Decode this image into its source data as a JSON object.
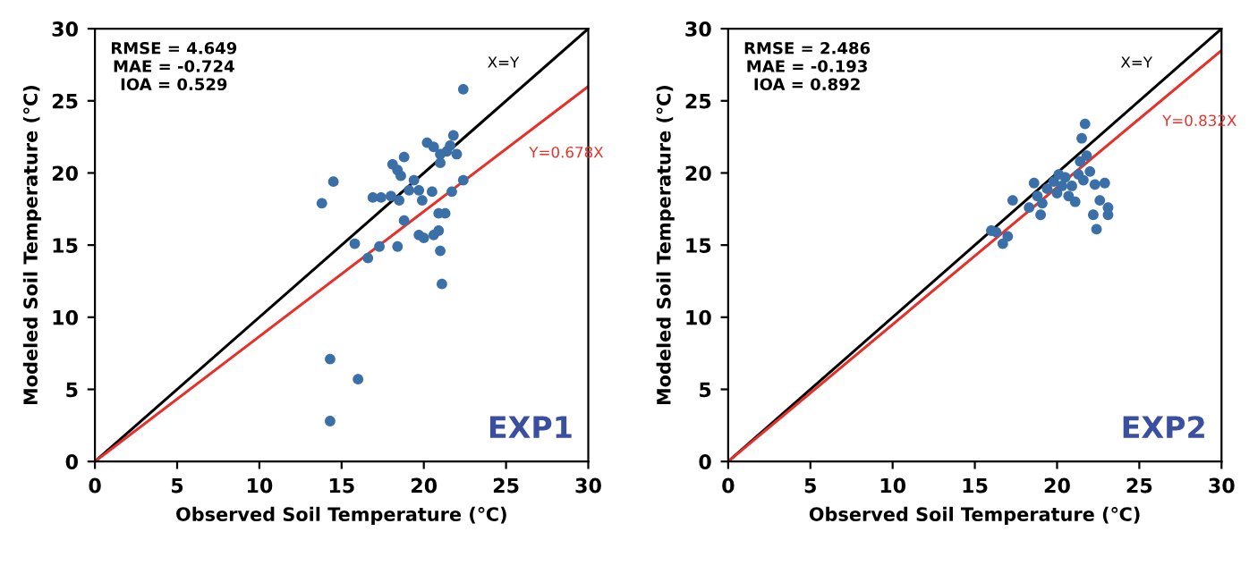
{
  "chart_data": [
    {
      "type": "scatter",
      "xlabel": "Observed Soil Temperature (℃)",
      "ylabel": "Modeled Soil Temperature (℃)",
      "xlim": [
        0,
        30
      ],
      "ylim": [
        0,
        30
      ],
      "xticks": [
        0,
        5,
        10,
        15,
        20,
        25,
        30
      ],
      "yticks": [
        0,
        5,
        10,
        15,
        20,
        25,
        30
      ],
      "grid": false,
      "legend": false,
      "annotations": [
        "RMSE = 4.649\nMAE = -0.724\nIOA = 0.529",
        "EXP1"
      ],
      "series": [
        {
          "type": "scatter",
          "marker": "circle",
          "color": "#3a6fa8",
          "x": [
            22.4,
            14.5,
            13.8,
            15.8,
            16.6,
            17.3,
            18.4,
            16.9,
            17.4,
            18.0,
            18.5,
            18.8,
            18.1,
            18.4,
            18.8,
            18.6,
            19.4,
            19.1,
            19.7,
            19.9,
            19.7,
            20.0,
            20.5,
            20.9,
            21.3,
            20.6,
            20.9,
            21.0,
            21.1,
            20.2,
            20.6,
            21.0,
            21.4,
            21.8,
            21.6,
            22.0,
            21.0,
            22.4,
            21.7,
            14.3,
            16.0,
            14.3
          ],
          "values": [
            25.8,
            19.4,
            17.9,
            15.1,
            14.1,
            14.9,
            14.9,
            18.3,
            18.3,
            18.4,
            18.1,
            16.7,
            20.6,
            20.2,
            21.1,
            19.8,
            19.5,
            18.8,
            18.8,
            18.1,
            15.7,
            15.5,
            18.7,
            17.2,
            17.2,
            15.7,
            16.0,
            14.6,
            12.3,
            22.1,
            21.8,
            21.3,
            21.5,
            22.6,
            21.9,
            21.3,
            20.7,
            19.5,
            18.7,
            7.1,
            5.7,
            2.8
          ]
        },
        {
          "type": "line",
          "name": "X=Y",
          "color": "#000000",
          "x": [
            0,
            30
          ],
          "values": [
            0,
            30
          ]
        },
        {
          "type": "line",
          "name": "Y=0.678X",
          "color": "#e8302a",
          "x": [
            0,
            30
          ],
          "values": [
            0,
            26.0
          ]
        }
      ]
    },
    {
      "type": "scatter",
      "xlabel": "Observed Soil Temperature (℃)",
      "ylabel": "Modeled Soil Temperature (℃)",
      "xlim": [
        0,
        30
      ],
      "ylim": [
        0,
        30
      ],
      "xticks": [
        0,
        5,
        10,
        15,
        20,
        25,
        30
      ],
      "yticks": [
        0,
        5,
        10,
        15,
        20,
        25,
        30
      ],
      "grid": false,
      "legend": false,
      "annotations": [
        "RMSE = 2.486\nMAE = -0.193\nIOA = 0.892",
        "EXP2"
      ],
      "series": [
        {
          "type": "scatter",
          "marker": "circle",
          "color": "#3a6fa8",
          "x": [
            16.0,
            16.3,
            16.7,
            17.0,
            17.3,
            18.3,
            18.6,
            18.8,
            19.0,
            19.1,
            19.4,
            19.8,
            20.1,
            20.5,
            20.7,
            21.1,
            20.9,
            21.3,
            21.4,
            21.5,
            21.7,
            21.8,
            21.6,
            22.0,
            22.2,
            22.4,
            22.6,
            22.9,
            23.1,
            23.1,
            22.3,
            20.3,
            20.0
          ],
          "values": [
            16.0,
            15.9,
            15.1,
            15.6,
            18.1,
            17.6,
            19.3,
            18.4,
            17.1,
            17.9,
            18.9,
            19.4,
            19.9,
            19.7,
            18.4,
            18.0,
            19.1,
            19.9,
            20.8,
            22.4,
            23.4,
            21.2,
            19.5,
            20.1,
            17.1,
            16.1,
            18.1,
            19.3,
            17.6,
            17.1,
            19.2,
            19.1,
            18.6
          ]
        },
        {
          "type": "line",
          "name": "X=Y",
          "color": "#000000",
          "x": [
            0,
            30
          ],
          "values": [
            0,
            30
          ]
        },
        {
          "type": "line",
          "name": "Y=0.832X",
          "color": "#e8302a",
          "x": [
            0,
            30
          ],
          "values": [
            0,
            28.5
          ]
        }
      ]
    }
  ]
}
